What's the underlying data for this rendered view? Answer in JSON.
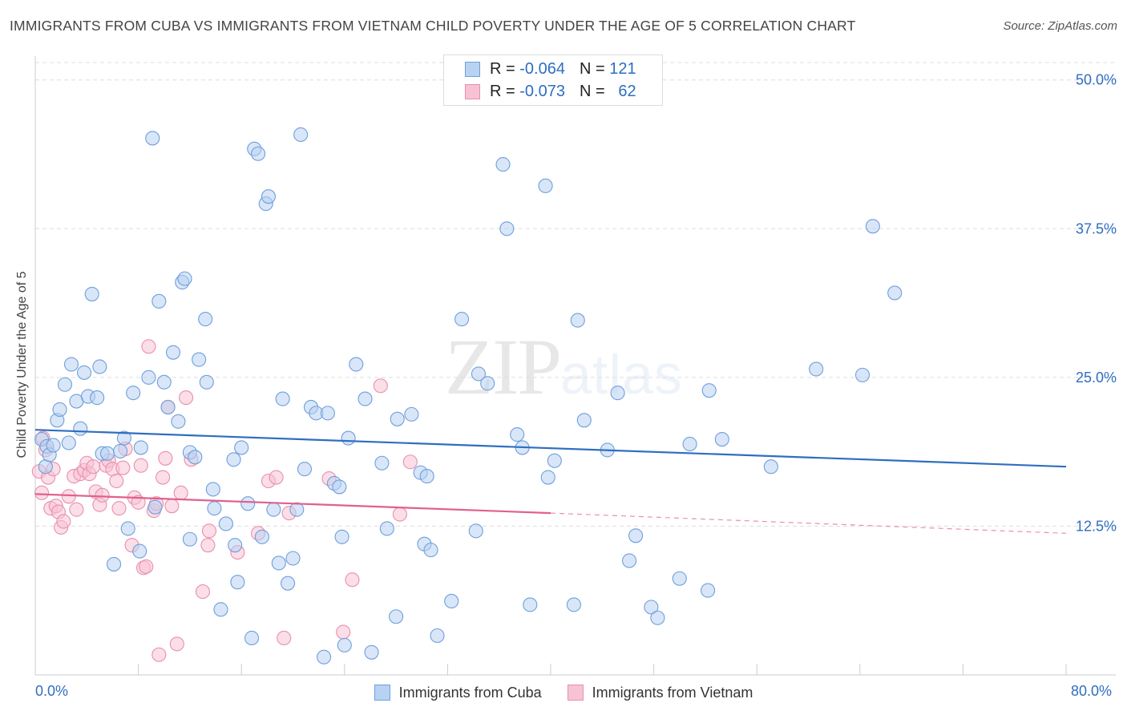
{
  "title": "IMMIGRANTS FROM CUBA VS IMMIGRANTS FROM VIETNAM CHILD POVERTY UNDER THE AGE OF 5 CORRELATION CHART",
  "source": "Source: ZipAtlas.com",
  "watermark": {
    "zip": "ZIP",
    "atlas": "atlas"
  },
  "legend_top": {
    "cuba": {
      "r_label": "R =",
      "r_value": "-0.064",
      "n_label": "N =",
      "n_value": "121"
    },
    "vietnam": {
      "r_label": "R =",
      "r_value": "-0.073",
      "n_label": "N =",
      "n_value": "62"
    }
  },
  "legend_bottom": {
    "cuba": "Immigrants from Cuba",
    "vietnam": "Immigrants from Vietnam"
  },
  "x_axis": {
    "min_label": "0.0%",
    "max_label": "80.0%"
  },
  "colors": {
    "cuba_fill": "#b8d2f2",
    "cuba_stroke": "#6f9fdc",
    "cuba_line": "#2f6ec0",
    "vietnam_fill": "#f7c3d4",
    "vietnam_stroke": "#e98fae",
    "vietnam_line": "#e0608e",
    "axis_text": "#2f6ec0",
    "grid": "#dddddd"
  },
  "chart_data": {
    "type": "scatter",
    "title": "IMMIGRANTS FROM CUBA VS IMMIGRANTS FROM VIETNAM CHILD POVERTY UNDER THE AGE OF 5 CORRELATION CHART",
    "xlabel": "",
    "ylabel": "Child Poverty Under the Age of 5",
    "xlim": [
      0,
      80
    ],
    "ylim": [
      0,
      52
    ],
    "y_ticks": [
      {
        "v": 12.5,
        "label": "12.5%"
      },
      {
        "v": 25,
        "label": "25.0%"
      },
      {
        "v": 37.5,
        "label": "37.5%"
      },
      {
        "v": 50,
        "label": "50.0%"
      }
    ],
    "grid": "horizontal dashed",
    "legend": "top-center",
    "series": [
      {
        "name": "Immigrants from Cuba",
        "trend": {
          "x0": 0,
          "y0": 20.6,
          "x1": 80,
          "y1": 17.5
        },
        "points": [
          [
            0.5,
            19.8
          ],
          [
            0.8,
            17.5
          ],
          [
            0.9,
            19.2
          ],
          [
            1.1,
            18.5
          ],
          [
            1.4,
            19.3
          ],
          [
            1.7,
            21.4
          ],
          [
            1.9,
            22.3
          ],
          [
            2.3,
            24.4
          ],
          [
            2.6,
            19.5
          ],
          [
            2.8,
            26.1
          ],
          [
            3.2,
            23.0
          ],
          [
            3.5,
            20.7
          ],
          [
            3.8,
            25.4
          ],
          [
            4.1,
            23.4
          ],
          [
            4.4,
            32.0
          ],
          [
            4.8,
            23.3
          ],
          [
            5.0,
            25.9
          ],
          [
            5.2,
            18.6
          ],
          [
            5.6,
            18.6
          ],
          [
            6.1,
            9.3
          ],
          [
            6.6,
            18.8
          ],
          [
            6.9,
            19.9
          ],
          [
            7.2,
            12.3
          ],
          [
            7.6,
            23.7
          ],
          [
            8.1,
            10.4
          ],
          [
            8.2,
            19.1
          ],
          [
            8.8,
            25.0
          ],
          [
            9.1,
            45.1
          ],
          [
            9.3,
            14.1
          ],
          [
            9.6,
            31.4
          ],
          [
            10.0,
            24.6
          ],
          [
            10.3,
            22.5
          ],
          [
            10.7,
            27.1
          ],
          [
            11.1,
            21.3
          ],
          [
            11.4,
            33.0
          ],
          [
            11.6,
            33.3
          ],
          [
            12.0,
            11.4
          ],
          [
            12.0,
            18.7
          ],
          [
            12.4,
            18.3
          ],
          [
            12.7,
            26.5
          ],
          [
            13.2,
            29.9
          ],
          [
            13.3,
            24.6
          ],
          [
            13.8,
            15.6
          ],
          [
            13.9,
            14.0
          ],
          [
            14.4,
            5.5
          ],
          [
            14.8,
            12.7
          ],
          [
            15.4,
            18.1
          ],
          [
            15.5,
            10.9
          ],
          [
            15.7,
            7.8
          ],
          [
            16.0,
            19.1
          ],
          [
            16.5,
            14.4
          ],
          [
            16.8,
            3.1
          ],
          [
            17.0,
            44.2
          ],
          [
            17.3,
            43.8
          ],
          [
            17.6,
            11.6
          ],
          [
            17.9,
            39.6
          ],
          [
            18.1,
            40.2
          ],
          [
            18.5,
            13.9
          ],
          [
            18.9,
            9.4
          ],
          [
            19.2,
            23.2
          ],
          [
            19.6,
            7.7
          ],
          [
            20.0,
            9.8
          ],
          [
            20.3,
            13.9
          ],
          [
            20.6,
            45.4
          ],
          [
            20.9,
            17.3
          ],
          [
            21.4,
            22.5
          ],
          [
            21.8,
            22.0
          ],
          [
            22.4,
            1.5
          ],
          [
            22.7,
            22.0
          ],
          [
            23.2,
            16.1
          ],
          [
            23.6,
            15.8
          ],
          [
            23.8,
            11.6
          ],
          [
            24.0,
            2.5
          ],
          [
            24.3,
            19.9
          ],
          [
            24.9,
            26.1
          ],
          [
            25.6,
            23.2
          ],
          [
            26.1,
            1.9
          ],
          [
            26.9,
            17.8
          ],
          [
            27.3,
            12.3
          ],
          [
            28.0,
            4.9
          ],
          [
            28.1,
            21.5
          ],
          [
            29.2,
            21.9
          ],
          [
            29.9,
            17.0
          ],
          [
            30.2,
            11.0
          ],
          [
            30.4,
            16.7
          ],
          [
            30.7,
            10.5
          ],
          [
            31.2,
            3.3
          ],
          [
            32.3,
            6.2
          ],
          [
            33.1,
            29.9
          ],
          [
            34.2,
            12.1
          ],
          [
            34.4,
            25.3
          ],
          [
            35.1,
            24.5
          ],
          [
            36.3,
            42.9
          ],
          [
            36.6,
            37.5
          ],
          [
            37.4,
            20.2
          ],
          [
            37.8,
            19.1
          ],
          [
            38.4,
            5.9
          ],
          [
            39.6,
            41.1
          ],
          [
            39.8,
            16.6
          ],
          [
            40.3,
            18.0
          ],
          [
            41.8,
            5.9
          ],
          [
            42.1,
            29.8
          ],
          [
            42.6,
            21.4
          ],
          [
            44.4,
            18.9
          ],
          [
            45.2,
            23.7
          ],
          [
            46.1,
            9.6
          ],
          [
            46.6,
            11.7
          ],
          [
            47.8,
            5.7
          ],
          [
            48.3,
            4.8
          ],
          [
            50.0,
            8.1
          ],
          [
            50.8,
            19.4
          ],
          [
            52.2,
            7.1
          ],
          [
            52.3,
            23.9
          ],
          [
            53.3,
            19.8
          ],
          [
            57.1,
            17.5
          ],
          [
            60.6,
            25.7
          ],
          [
            64.2,
            25.2
          ],
          [
            65.0,
            37.7
          ],
          [
            66.7,
            32.1
          ]
        ]
      },
      {
        "name": "Immigrants from Vietnam",
        "trend": {
          "x0": 0,
          "y0": 15.2,
          "x1": 40,
          "y1": 13.6
        },
        "trend_dashed_to": {
          "x1": 80,
          "y1": 11.9
        },
        "points": [
          [
            0.3,
            17.1
          ],
          [
            0.5,
            15.3
          ],
          [
            0.6,
            19.9
          ],
          [
            0.8,
            18.9
          ],
          [
            1.0,
            16.6
          ],
          [
            1.2,
            14.0
          ],
          [
            1.4,
            17.3
          ],
          [
            1.6,
            14.2
          ],
          [
            1.8,
            13.7
          ],
          [
            2.0,
            12.4
          ],
          [
            2.2,
            12.9
          ],
          [
            2.6,
            15.0
          ],
          [
            3.0,
            16.7
          ],
          [
            3.2,
            13.9
          ],
          [
            3.5,
            16.9
          ],
          [
            3.8,
            17.2
          ],
          [
            4.0,
            17.8
          ],
          [
            4.2,
            16.9
          ],
          [
            4.5,
            17.5
          ],
          [
            4.7,
            15.4
          ],
          [
            5.0,
            14.3
          ],
          [
            5.2,
            15.1
          ],
          [
            5.5,
            17.6
          ],
          [
            5.7,
            18.0
          ],
          [
            6.0,
            17.3
          ],
          [
            6.3,
            16.3
          ],
          [
            6.5,
            14.0
          ],
          [
            6.8,
            17.4
          ],
          [
            7.0,
            19.0
          ],
          [
            7.5,
            10.9
          ],
          [
            7.7,
            14.9
          ],
          [
            8.0,
            14.5
          ],
          [
            8.2,
            17.6
          ],
          [
            8.4,
            9.0
          ],
          [
            8.6,
            9.1
          ],
          [
            8.8,
            27.6
          ],
          [
            9.2,
            13.8
          ],
          [
            9.4,
            14.4
          ],
          [
            9.6,
            1.7
          ],
          [
            9.9,
            16.6
          ],
          [
            10.1,
            18.2
          ],
          [
            10.3,
            22.5
          ],
          [
            10.6,
            14.2
          ],
          [
            11.0,
            2.6
          ],
          [
            11.3,
            15.3
          ],
          [
            11.7,
            23.3
          ],
          [
            12.1,
            18.1
          ],
          [
            13.0,
            7.0
          ],
          [
            13.4,
            10.9
          ],
          [
            13.5,
            12.1
          ],
          [
            15.7,
            10.3
          ],
          [
            17.3,
            11.9
          ],
          [
            18.1,
            16.3
          ],
          [
            18.7,
            16.6
          ],
          [
            19.3,
            3.1
          ],
          [
            19.7,
            13.6
          ],
          [
            22.8,
            16.5
          ],
          [
            23.9,
            3.6
          ],
          [
            24.6,
            8.0
          ],
          [
            26.8,
            24.3
          ],
          [
            28.3,
            13.5
          ],
          [
            29.1,
            17.9
          ]
        ]
      }
    ]
  }
}
